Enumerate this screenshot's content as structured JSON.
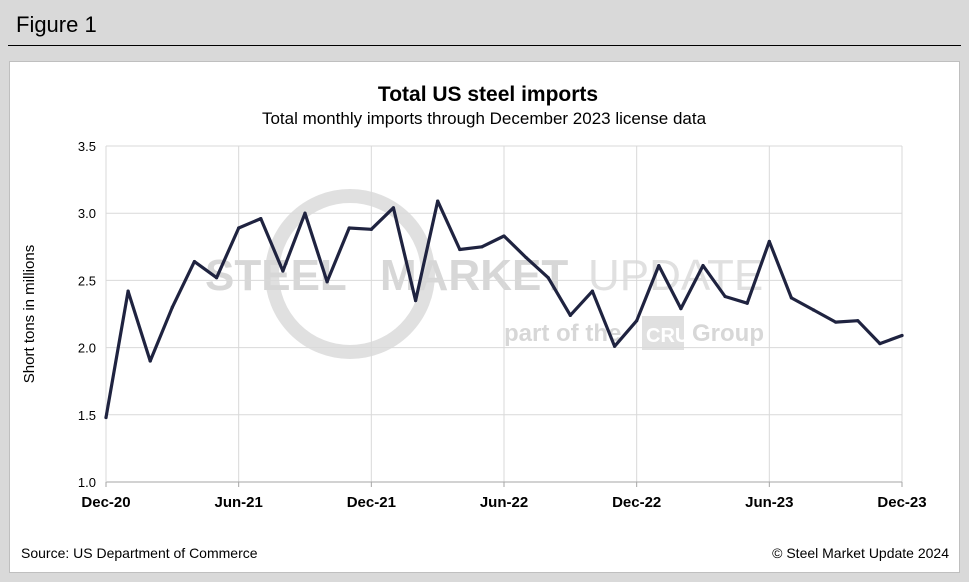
{
  "figure_label": "Figure 1",
  "source": "Source: US Department of Commerce",
  "copyright": "© Steel Market Update 2024",
  "watermark": {
    "brand_word_1": "STEEL",
    "brand_word_2": "MARKET",
    "brand_word_3": "UPDATE",
    "tagline_prefix": "part of the",
    "tagline_logo": "CRU",
    "tagline_suffix": "Group",
    "color": "#b8b8b8"
  },
  "chart_data": {
    "type": "line",
    "title": "Total US steel imports",
    "subtitle": "Total monthly  imports through  December 2023 license data",
    "xlabel": "",
    "ylabel": "Short tons in millions",
    "ylim": [
      1.0,
      3.5
    ],
    "yticks": [
      "1.0",
      "1.5",
      "2.0",
      "2.5",
      "3.0",
      "3.5"
    ],
    "xtick_labels": [
      {
        "index": 0,
        "label": "Dec-20"
      },
      {
        "index": 6,
        "label": "Jun-21"
      },
      {
        "index": 12,
        "label": "Dec-21"
      },
      {
        "index": 18,
        "label": "Jun-22"
      },
      {
        "index": 24,
        "label": "Dec-22"
      },
      {
        "index": 30,
        "label": "Jun-23"
      },
      {
        "index": 36,
        "label": "Dec-23"
      }
    ],
    "grid": true,
    "line_color": "#1f2340",
    "series": [
      {
        "name": "Total US steel imports",
        "x": [
          "Dec-20",
          "Jan-21",
          "Feb-21",
          "Mar-21",
          "Apr-21",
          "May-21",
          "Jun-21",
          "Jul-21",
          "Aug-21",
          "Sep-21",
          "Oct-21",
          "Nov-21",
          "Dec-21",
          "Jan-22",
          "Feb-22",
          "Mar-22",
          "Apr-22",
          "May-22",
          "Jun-22",
          "Jul-22",
          "Aug-22",
          "Sep-22",
          "Oct-22",
          "Nov-22",
          "Dec-22",
          "Jan-23",
          "Feb-23",
          "Mar-23",
          "Apr-23",
          "May-23",
          "Jun-23",
          "Jul-23",
          "Aug-23",
          "Sep-23",
          "Oct-23",
          "Nov-23",
          "Dec-23"
        ],
        "values": [
          1.48,
          2.42,
          1.9,
          2.3,
          2.64,
          2.52,
          2.89,
          2.96,
          2.57,
          3.0,
          2.49,
          2.89,
          2.88,
          3.04,
          2.35,
          3.09,
          2.73,
          2.75,
          2.83,
          2.67,
          2.52,
          2.24,
          2.42,
          2.01,
          2.2,
          2.61,
          2.29,
          2.61,
          2.38,
          2.33,
          2.79,
          2.37,
          2.28,
          2.19,
          2.2,
          2.03,
          2.09
        ]
      }
    ]
  }
}
